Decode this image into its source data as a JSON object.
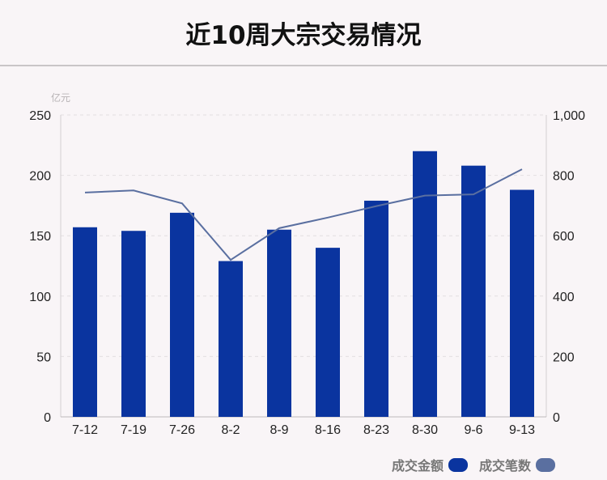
{
  "title": "近10周大宗交易情况",
  "chart_data": {
    "type": "bar",
    "title": "近10周大宗交易情况",
    "categories": [
      "7-12",
      "7-19",
      "7-26",
      "8-2",
      "8-9",
      "8-16",
      "8-23",
      "8-30",
      "9-6",
      "9-13"
    ],
    "y_unit_left": "亿元",
    "ylim_left": [
      0,
      250
    ],
    "ylim_right": [
      0,
      1000
    ],
    "left_ticks": [
      "0",
      "50",
      "100",
      "150",
      "200",
      "250"
    ],
    "right_ticks": [
      "0",
      "200",
      "400",
      "600",
      "800",
      "1,000"
    ],
    "grid": true,
    "legend_position": "bottom-right",
    "series": [
      {
        "name": "成交金额",
        "type": "bar",
        "axis": "left",
        "color": "#0a349f",
        "values": [
          157,
          154,
          169,
          129,
          155,
          140,
          179,
          220,
          208,
          188
        ]
      },
      {
        "name": "成交笔数",
        "type": "line",
        "axis": "right",
        "color": "#5a6fa0",
        "values": [
          743,
          750,
          707,
          520,
          625,
          660,
          698,
          733,
          737,
          820
        ]
      }
    ]
  },
  "legend": {
    "amount_label": "成交金额",
    "count_label": "成交笔数",
    "amount_color": "#0a349f",
    "count_color": "#5a6fa0"
  }
}
